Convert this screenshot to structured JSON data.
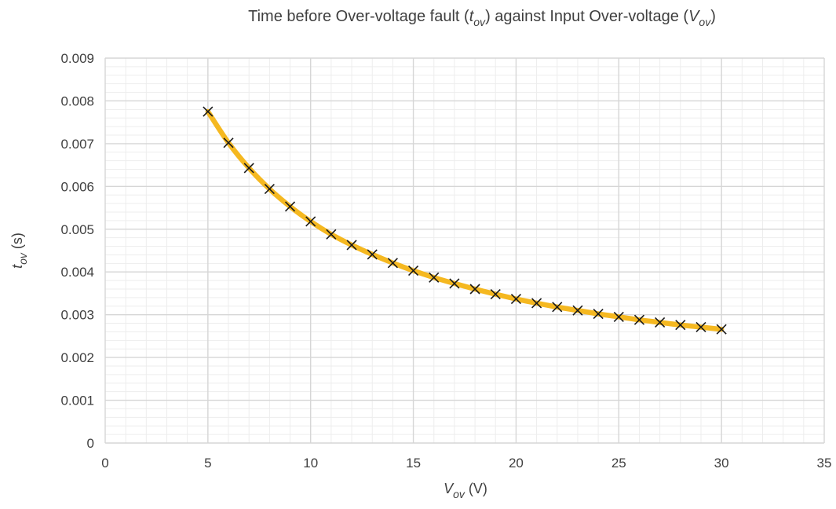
{
  "chart_data": {
    "type": "scatter",
    "title": {
      "pre": "Time before Over-voltage fault (",
      "sym1": "t",
      "sub1": "ov",
      "mid": ") against Input Over-voltage (",
      "sym2": "V",
      "sub2": "ov",
      "post": ")"
    },
    "xlabel": {
      "sym": "V",
      "sub": "ov",
      "unit": " (V)"
    },
    "ylabel": {
      "sym": "t",
      "sub": "ov",
      "unit": " (s)"
    },
    "xlim": [
      0,
      35
    ],
    "ylim": [
      0,
      0.009
    ],
    "x_ticks": [
      "0",
      "5",
      "10",
      "15",
      "20",
      "25",
      "30",
      "35"
    ],
    "y_ticks": [
      "0",
      "0.001",
      "0.002",
      "0.003",
      "0.004",
      "0.005",
      "0.006",
      "0.007",
      "0.008",
      "0.009"
    ],
    "grid": {
      "major": true,
      "minor": true
    },
    "colors": {
      "line": "#f5b820",
      "marker": "#1a1a1a",
      "grid_major": "#d6d6d6",
      "grid_minor": "#ededed",
      "text": "#404040"
    },
    "marker": "x-icon",
    "series": [
      {
        "x": [
          5,
          6,
          7,
          8,
          9,
          10,
          11,
          12,
          13,
          14,
          15,
          16,
          17,
          18,
          19,
          20,
          21,
          22,
          23,
          24,
          25,
          26,
          27,
          28,
          29,
          30
        ],
        "y": [
          0.00775,
          0.00702,
          0.00643,
          0.00594,
          0.00553,
          0.00518,
          0.00488,
          0.00463,
          0.00441,
          0.00421,
          0.00403,
          0.00387,
          0.00373,
          0.0036,
          0.00348,
          0.00337,
          0.00327,
          0.00318,
          0.0031,
          0.00302,
          0.00295,
          0.00288,
          0.00282,
          0.00276,
          0.00271,
          0.00266
        ]
      }
    ]
  }
}
